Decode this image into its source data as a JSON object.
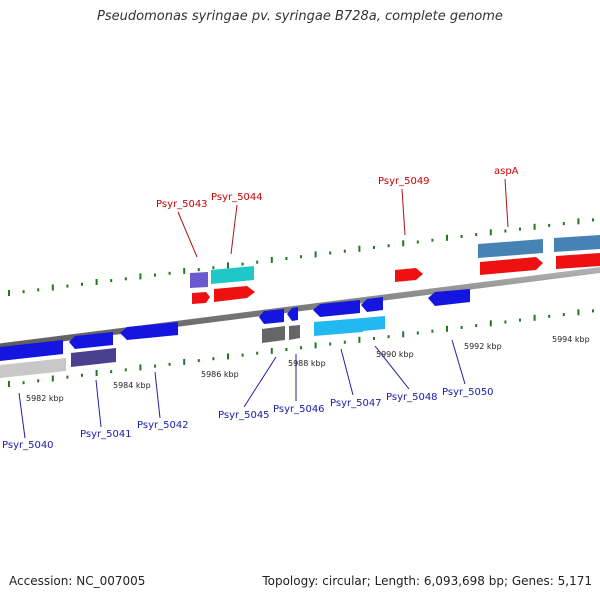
{
  "title": "Pseudomonas syringae pv. syringae B728a, complete genome",
  "footer": {
    "accession_label": "Accession:",
    "accession": "NC_007005",
    "topology_label": "Topology:",
    "topology": "circular",
    "length_label": "Length:",
    "length": "6,093,698 bp",
    "genes_label": "Genes:",
    "genes": "5,171"
  },
  "colors": {
    "backbone": "#8c8c8c",
    "tick": "#1f7a1f",
    "label_top": "#cc0000",
    "label_bottom": "#1a1aaa",
    "blue": "#1515e0",
    "red": "#ee1111",
    "purple": "#6a5acd",
    "dark_purple": "#4b3f8f",
    "cyan": "#1fc7c7",
    "light_blue": "#22b8f0",
    "steel_blue": "#4682b4",
    "grey": "#666666",
    "light_grey": "#c8c8c8"
  },
  "scale_labels": [
    {
      "text": "5982 kbp"
    },
    {
      "text": "5984 kbp"
    },
    {
      "text": "5986 kbp"
    },
    {
      "text": "5988 kbp"
    },
    {
      "text": "5990 kbp"
    },
    {
      "text": "5992 kbp"
    },
    {
      "text": "5994 kbp"
    }
  ],
  "gene_labels_top": [
    "Psyr_5043",
    "Psyr_5044",
    "Psyr_5049",
    "aspA"
  ],
  "gene_labels_bottom": [
    "Psyr_5040",
    "Psyr_5041",
    "Psyr_5042",
    "Psyr_5045",
    "Psyr_5046",
    "Psyr_5047",
    "Psyr_5048",
    "Psyr_5050"
  ]
}
